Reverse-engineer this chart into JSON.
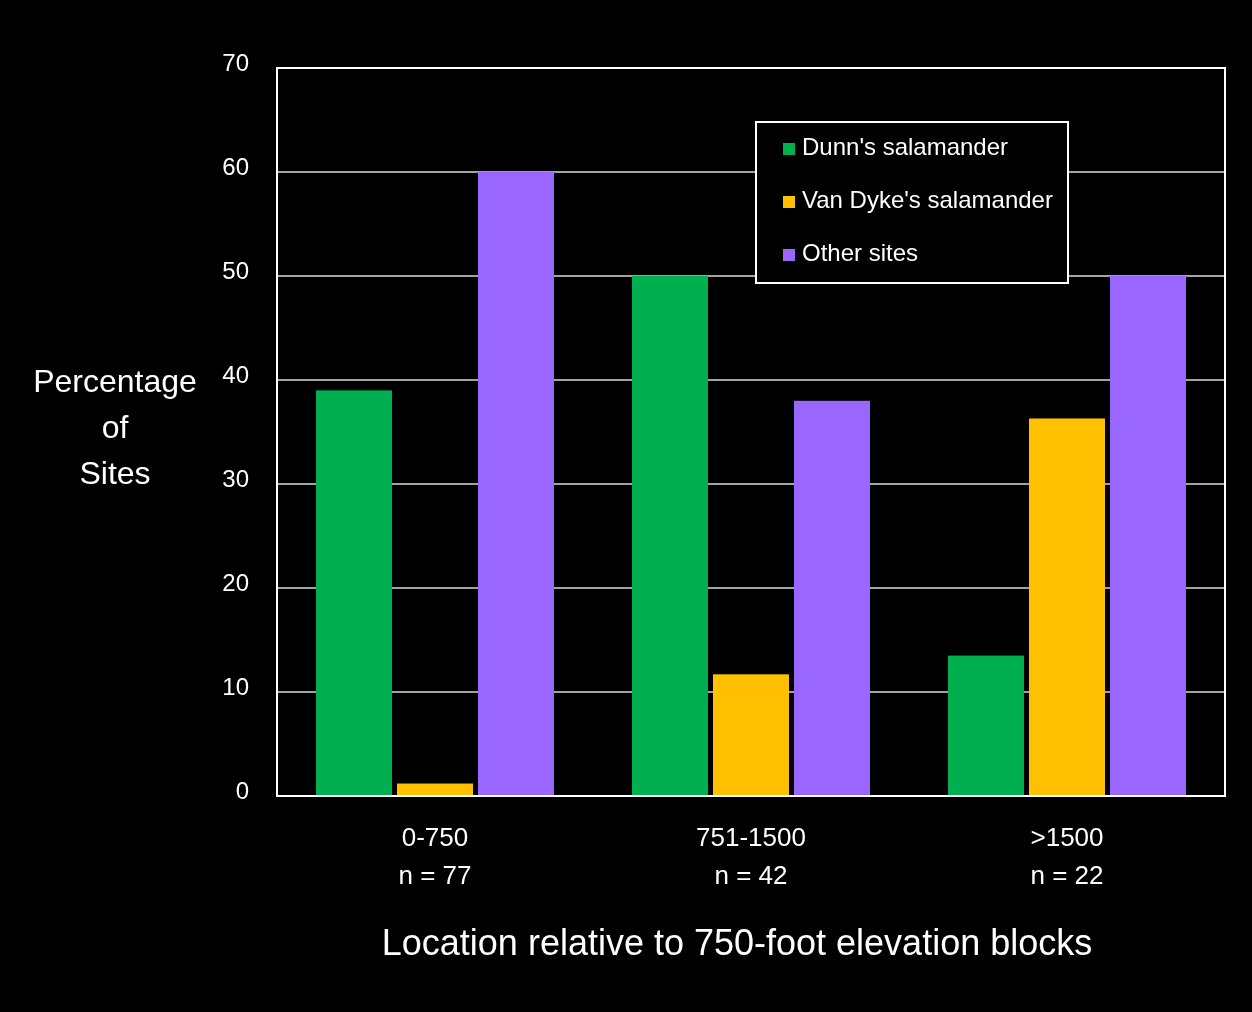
{
  "chart_data": {
    "type": "bar",
    "xlabel": "Location relative to 750-foot elevation blocks",
    "ylabel": "Percentage\nof\nSites",
    "categories": [
      "0-750\nn = 77",
      "751-1500\nn = 42",
      ">1500\nn = 22"
    ],
    "series": [
      {
        "name": "Dunn's salamander",
        "color": "#00b050",
        "values": [
          39,
          50,
          13.5
        ]
      },
      {
        "name": "Van Dyke's salamander",
        "color": "#ffc000",
        "values": [
          1.2,
          11.7,
          36.3
        ]
      },
      {
        "name": "Other sites",
        "color": "#9966ff",
        "values": [
          60,
          38,
          50
        ]
      }
    ],
    "ylim": [
      0,
      70
    ],
    "yticks": [
      0,
      10,
      20,
      30,
      40,
      50,
      60,
      70
    ],
    "grid": "y",
    "legend": "top right"
  }
}
